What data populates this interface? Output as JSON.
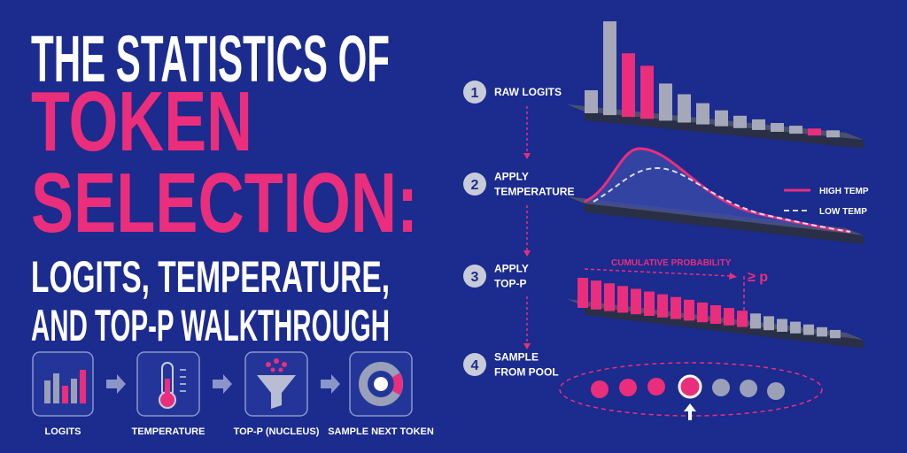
{
  "title": {
    "line1": "THE STATISTICS OF",
    "highlight": [
      "TOKEN",
      "SELECTION:"
    ],
    "subtitle": [
      "LOGITS, TEMPERATURE,",
      "AND TOP-P WALKTHROUGH"
    ]
  },
  "pipeline": [
    "LOGITS",
    "TEMPERATURE",
    "TOP-P (NUCLEUS)",
    "SAMPLE NEXT TOKEN"
  ],
  "steps": [
    {
      "number": "1",
      "label": [
        "RAW LOGITS"
      ]
    },
    {
      "number": "2",
      "label": [
        "APPLY",
        "TEMPERATURE"
      ]
    },
    {
      "number": "3",
      "label": [
        "APPLY",
        "TOP-P"
      ]
    },
    {
      "number": "4",
      "label": [
        "SAMPLE",
        "FROM POOL"
      ]
    }
  ],
  "legend": [
    "HIGH TEMP",
    "LOW TEMP"
  ],
  "top_p": {
    "label": "CUMULATIVE PROBABILITY",
    "threshold": "≥ p"
  }
}
